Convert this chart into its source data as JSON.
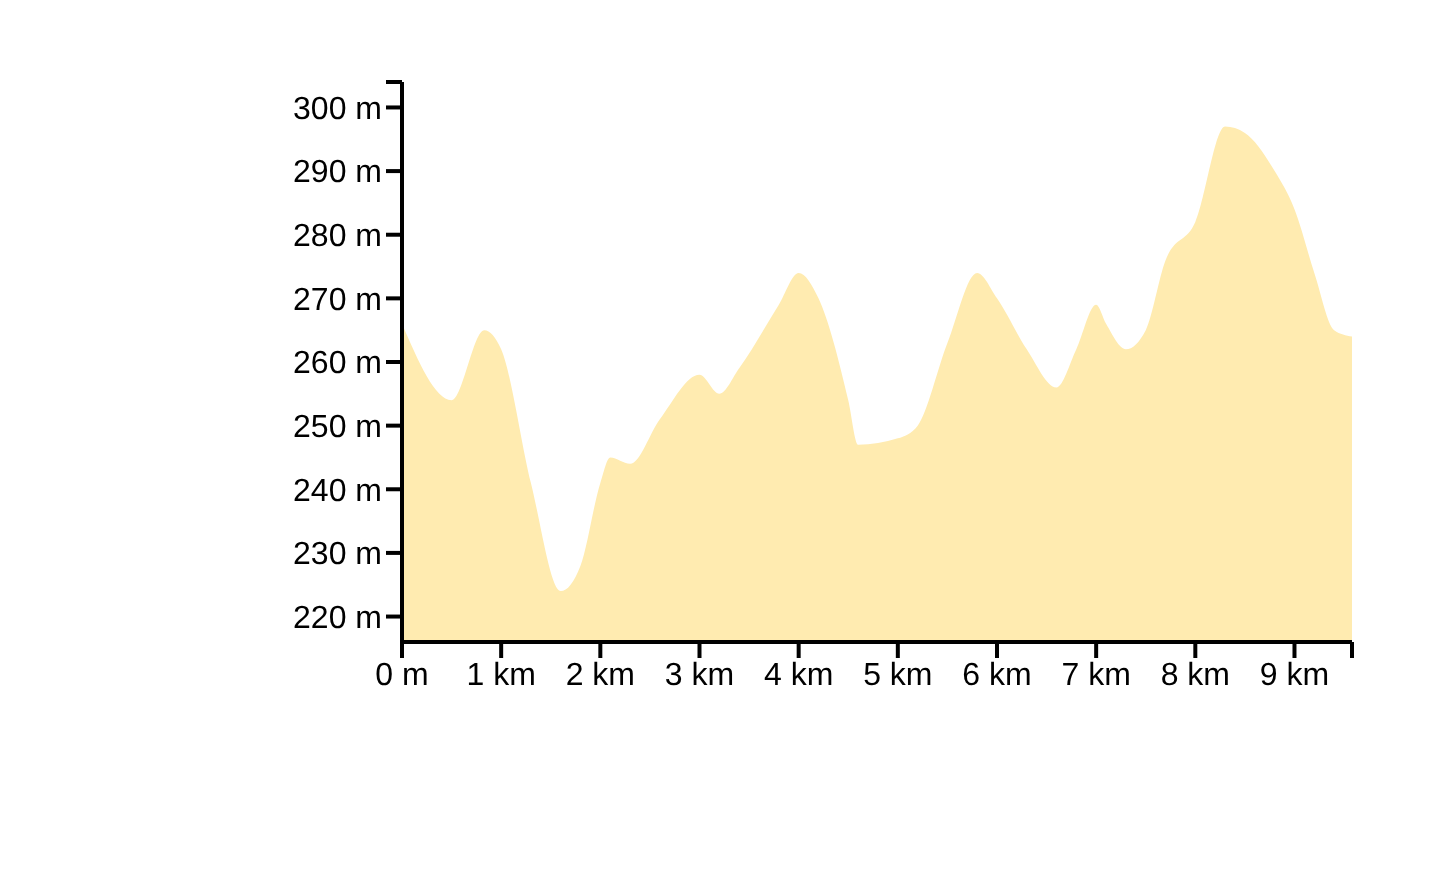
{
  "chart_data": {
    "type": "area",
    "x": [
      0,
      0.5,
      0.83,
      1.0,
      1.3,
      1.6,
      1.8,
      2.0,
      2.1,
      2.3,
      2.6,
      3.0,
      3.2,
      3.4,
      3.8,
      4.0,
      4.2,
      4.5,
      4.6,
      5.0,
      5.2,
      5.5,
      5.8,
      6.0,
      6.3,
      6.6,
      6.8,
      7.0,
      7.1,
      7.3,
      7.5,
      7.7,
      8.0,
      8.3,
      8.5,
      8.8,
      9.0,
      9.2,
      9.4,
      9.58
    ],
    "series": [
      {
        "color": "#ffebb0",
        "values": [
          266,
          254,
          265,
          262,
          241,
          224,
          228,
          241,
          245,
          244,
          251,
          258,
          255,
          259,
          269,
          274,
          270,
          254,
          247,
          248,
          250,
          263,
          274,
          270,
          262,
          256,
          262,
          269,
          266,
          262,
          265,
          276,
          282,
          297,
          296,
          290,
          284,
          274,
          265,
          264
        ]
      }
    ],
    "xlim": [
      0,
      9.58
    ],
    "xticks": [
      {
        "value": 0,
        "label": "0 m"
      },
      {
        "value": 1,
        "label": "1 km"
      },
      {
        "value": 2,
        "label": "2 km"
      },
      {
        "value": 3,
        "label": "3 km"
      },
      {
        "value": 4,
        "label": "4 km"
      },
      {
        "value": 5,
        "label": "5 km"
      },
      {
        "value": 6,
        "label": "6 km"
      },
      {
        "value": 7,
        "label": "7 km"
      },
      {
        "value": 8,
        "label": "8 km"
      },
      {
        "value": 9,
        "label": "9 km"
      },
      {
        "value": 9.58,
        "label": null
      }
    ],
    "ylim": [
      216,
      304
    ],
    "yticks": [
      {
        "value": 220,
        "label": "220 m"
      },
      {
        "value": 230,
        "label": "230 m"
      },
      {
        "value": 240,
        "label": "240 m"
      },
      {
        "value": 250,
        "label": "250 m"
      },
      {
        "value": 260,
        "label": "260 m"
      },
      {
        "value": 270,
        "label": "270 m"
      },
      {
        "value": 280,
        "label": "280 m"
      },
      {
        "value": 290,
        "label": "290 m"
      },
      {
        "value": 300,
        "label": "300 m"
      },
      {
        "value": 304,
        "label": null
      }
    ],
    "grid": false,
    "legend": false
  }
}
